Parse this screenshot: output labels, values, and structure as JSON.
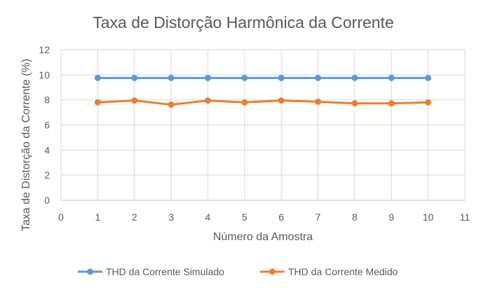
{
  "chart_data": {
    "type": "line",
    "title": "Taxa de Distorção Harmônica da Corrente",
    "xlabel": "Número da Amostra",
    "ylabel": "Taxa de Distorção da Corrente (%)",
    "xlim": [
      0,
      11
    ],
    "ylim": [
      0,
      12
    ],
    "x_ticks": [
      "0",
      "1",
      "2",
      "3",
      "4",
      "5",
      "6",
      "7",
      "8",
      "9",
      "10",
      "11"
    ],
    "y_ticks": [
      "0",
      "2",
      "4",
      "6",
      "8",
      "10",
      "12"
    ],
    "grid": true,
    "legend_position": "bottom",
    "x": [
      1,
      2,
      3,
      4,
      5,
      6,
      7,
      8,
      9,
      10
    ],
    "series": [
      {
        "name": "THD da Corrente Simulado",
        "color": "#5B9BD5",
        "values": [
          9.75,
          9.75,
          9.75,
          9.75,
          9.75,
          9.75,
          9.75,
          9.75,
          9.75,
          9.75
        ]
      },
      {
        "name": "THD da Corrente Medido",
        "color": "#ED7D31",
        "values": [
          7.8,
          7.95,
          7.62,
          7.95,
          7.8,
          7.95,
          7.85,
          7.72,
          7.72,
          7.8
        ]
      }
    ]
  }
}
